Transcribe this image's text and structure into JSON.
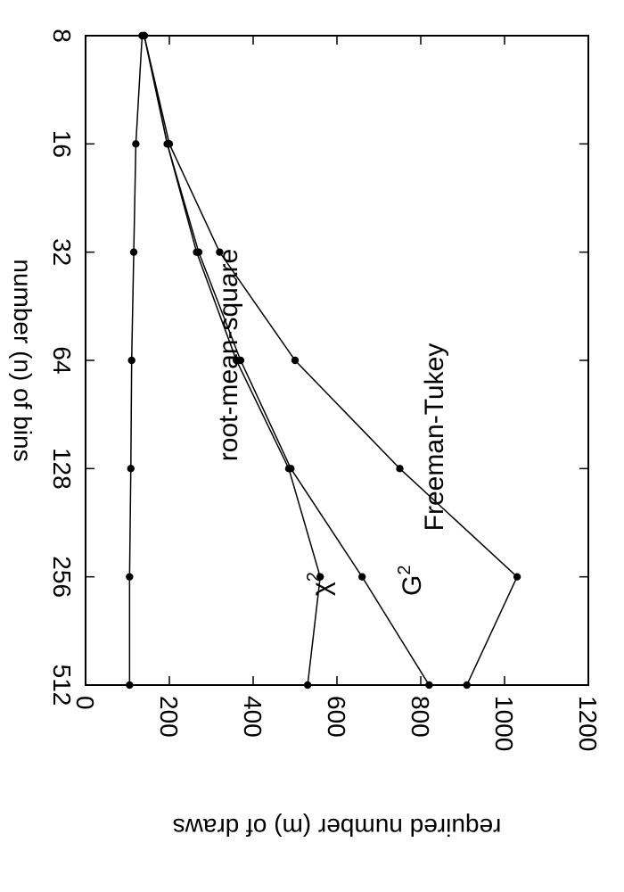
{
  "chart_data": {
    "type": "line",
    "xlabel": "number (n) of bins",
    "ylabel": "required number (m) of draws",
    "x_scale": "log2",
    "xlim": [
      8,
      512
    ],
    "ylim": [
      0,
      1200
    ],
    "x_ticks": [
      "8",
      "16",
      "32",
      "64",
      "128",
      "256",
      "512"
    ],
    "y_ticks": [
      "0",
      "200",
      "400",
      "600",
      "800",
      "1000",
      "1200"
    ],
    "grid": false,
    "series": [
      {
        "name": "Freeman-Tukey",
        "x": [
          8,
          16,
          32,
          64,
          128,
          256,
          512
        ],
        "y": [
          140,
          200,
          320,
          500,
          750,
          1030,
          910
        ]
      },
      {
        "name": "χ2",
        "x": [
          8,
          16,
          32,
          64,
          128,
          256,
          512
        ],
        "y": [
          140,
          195,
          270,
          370,
          490,
          660,
          820
        ]
      },
      {
        "name": "G2",
        "x": [
          8,
          16,
          32,
          64,
          128,
          256,
          512
        ],
        "y": [
          140,
          195,
          265,
          360,
          485,
          560,
          530
        ]
      },
      {
        "name": "root-mean-square",
        "x": [
          8,
          16,
          32,
          64,
          128,
          256,
          512
        ],
        "y": [
          135,
          120,
          115,
          110,
          108,
          105,
          105
        ]
      }
    ],
    "annotations": [
      {
        "text": "Freeman-Tukey",
        "series": "Freeman-Tukey"
      },
      {
        "text": "χ",
        "sup": "2",
        "series": "χ2"
      },
      {
        "text": "G",
        "sup": "2",
        "series": "G2"
      },
      {
        "text": "root-mean-square",
        "series": "root-mean-square"
      }
    ]
  }
}
